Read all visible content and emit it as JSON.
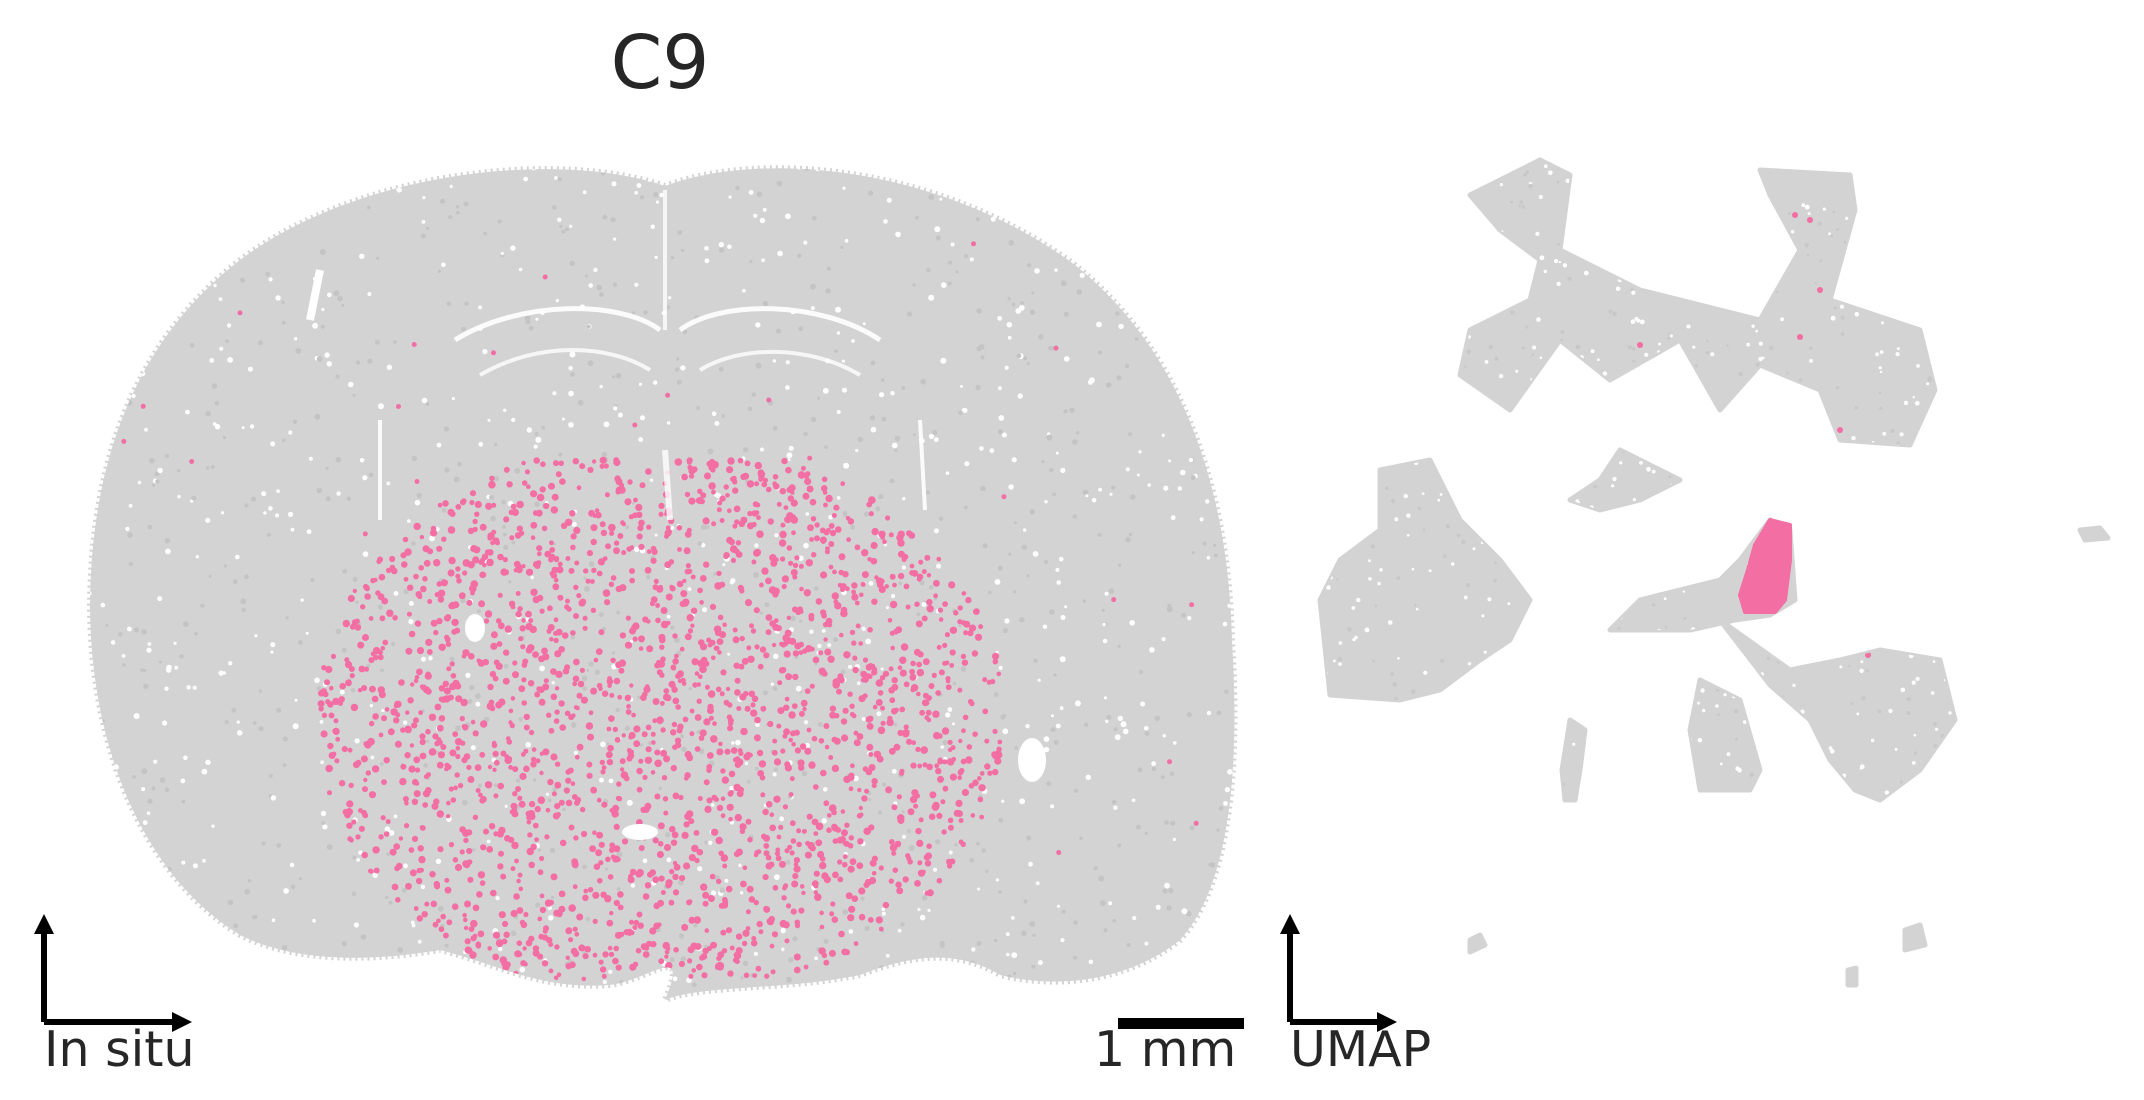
{
  "chart_data": [
    {
      "type": "scatter",
      "panel": "In situ",
      "title": "C9",
      "axis_label": "In situ",
      "scale_bar_label": "1 mm",
      "background_color": "#d3d3d3",
      "highlight_color": "#f26ea3",
      "highlighted_cluster": "C9",
      "highlight_region": "central ventral region of the coronal section (striatum-like area)",
      "grid": false,
      "legend": "none"
    },
    {
      "type": "scatter",
      "panel": "UMAP",
      "axis_label": "UMAP",
      "background_color": "#d3d3d3",
      "highlight_color": "#f26ea3",
      "highlighted_cluster": "C9",
      "highlight_region": "compact cluster at the center of the embedding",
      "grid": false,
      "legend": "none"
    }
  ]
}
